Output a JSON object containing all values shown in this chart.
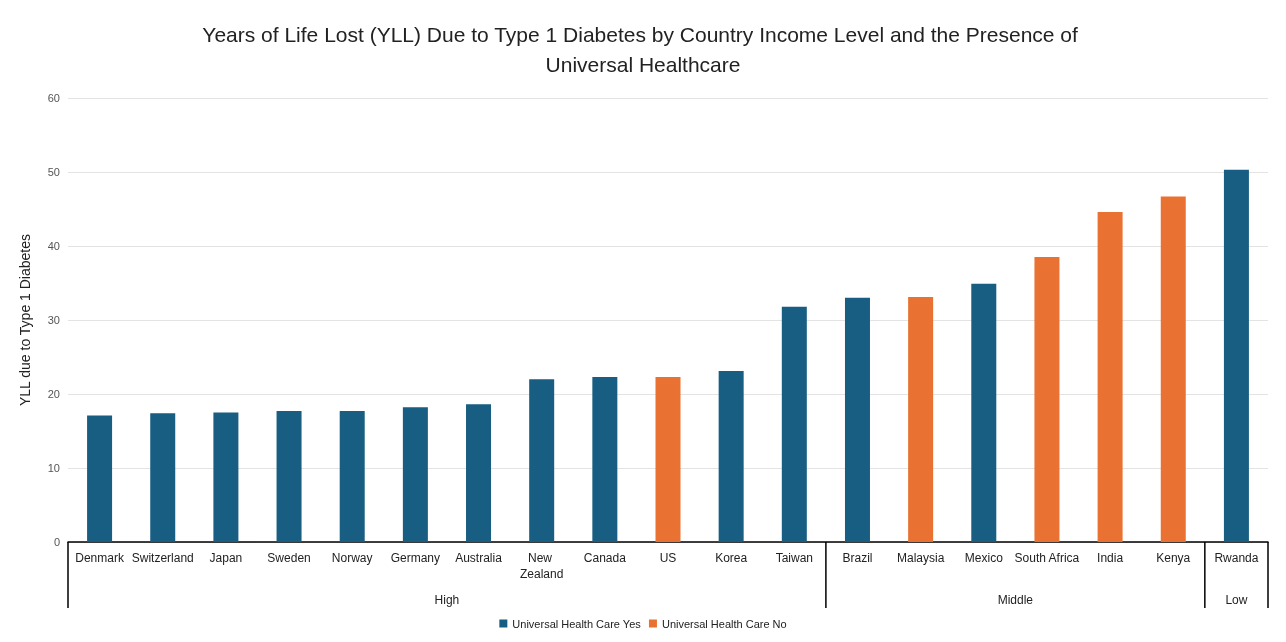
{
  "chart_data": {
    "type": "bar",
    "title": "Years of Life Lost (YLL) Due to Type 1 Diabetes by Country Income Level and the Presence of Universal Healthcare",
    "ylabel": "YLL due to Type 1 Diabetes",
    "categories": [
      "Denmark",
      "Switzerland",
      "Japan",
      "Sweden",
      "Norway",
      "Germany",
      "Australia",
      "New Zealand",
      "Canada",
      "US",
      "Korea",
      "Taiwan",
      "Brazil",
      "Malaysia",
      "Mexico",
      "South Africa",
      "India",
      "Kenya",
      "Rwanda"
    ],
    "series": [
      {
        "name": "Universal Health Care Yes",
        "color": "#175e82",
        "values": [
          17.1,
          17.4,
          17.5,
          17.7,
          17.7,
          18.2,
          18.6,
          22.0,
          22.3,
          null,
          23.1,
          31.8,
          33.0,
          null,
          34.9,
          null,
          null,
          null,
          50.3
        ]
      },
      {
        "name": "Universal Health Care No",
        "color": "#e97132",
        "values": [
          null,
          null,
          null,
          null,
          null,
          null,
          null,
          null,
          null,
          22.3,
          null,
          null,
          null,
          33.1,
          null,
          38.5,
          44.6,
          46.7,
          null
        ]
      }
    ],
    "annotations": [
      "High",
      "Middle",
      "Low"
    ],
    "ylim": [
      0,
      60
    ],
    "yticks": [
      0,
      10,
      20,
      30,
      40,
      50,
      60
    ],
    "grid": "y",
    "legend": "bottom"
  }
}
